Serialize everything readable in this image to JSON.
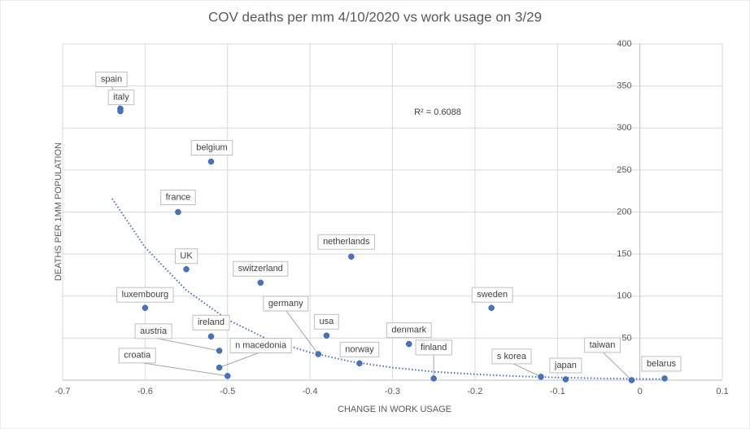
{
  "chart_data": {
    "type": "scatter",
    "title": "COV deaths per mm  4/10/2020 vs work usage on 3/29",
    "x_label": "CHANGE  IN WORK USAGE",
    "y_label": "DEATHS PER 1MM POPULATION",
    "annotation": "R² = 0.6088",
    "color": "#4472c4",
    "point_labels": [
      "spain",
      "italy",
      "belgium",
      "france",
      "UK",
      "switzerland",
      "netherlands",
      "luxembourg",
      "sweden",
      "ireland",
      "usa",
      "denmark",
      "austria",
      "germany",
      "norway",
      "n macedonia",
      "croatia",
      "finland",
      "s korea",
      "japan",
      "taiwan",
      "belarus"
    ],
    "x": [
      -0.63,
      -0.63,
      -0.52,
      -0.56,
      -0.55,
      -0.46,
      -0.35,
      -0.6,
      -0.18,
      -0.52,
      -0.38,
      -0.28,
      -0.51,
      -0.39,
      -0.34,
      -0.51,
      -0.5,
      -0.25,
      -0.12,
      -0.09,
      -0.01,
      0.03
    ],
    "values": [
      323,
      320,
      260,
      200,
      132,
      116,
      147,
      86,
      86,
      52,
      53,
      43,
      35,
      31,
      20,
      15,
      5,
      2,
      4,
      1,
      0,
      2
    ],
    "trendline": {
      "color": "#4472c4",
      "x": [
        -0.64,
        -0.6,
        -0.55,
        -0.5,
        -0.45,
        -0.4,
        -0.35,
        -0.3,
        -0.25,
        -0.2,
        -0.15,
        -0.1,
        -0.05,
        0,
        0.03
      ],
      "y": [
        216,
        158,
        107,
        72,
        48,
        33,
        22,
        15,
        10,
        7,
        4.7,
        3.2,
        2.2,
        1.5,
        1.2
      ]
    },
    "xlim": [
      -0.7,
      0.1
    ],
    "xticks": [
      -0.7,
      -0.6,
      -0.5,
      -0.4,
      -0.3,
      -0.2,
      -0.1,
      0,
      0.1
    ],
    "ylim": [
      0,
      400
    ],
    "yticks": [
      {
        "value": 0,
        "label": ""
      },
      50,
      100,
      150,
      200,
      250,
      300,
      350,
      400
    ],
    "grid": true
  }
}
